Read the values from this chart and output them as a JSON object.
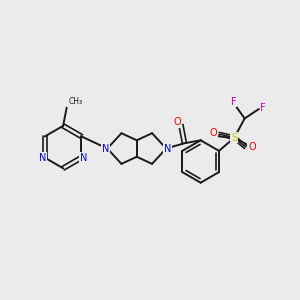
{
  "background_color": "#ebebeb",
  "bond_color": "#1a1a1a",
  "N_color": "#0000ff",
  "O_color": "#ff0000",
  "S_color": "#cccc00",
  "F_color": "#cc00cc",
  "figsize": [
    3.0,
    3.0
  ],
  "dpi": 100,
  "xlim": [
    0,
    10
  ],
  "ylim": [
    0,
    10
  ]
}
